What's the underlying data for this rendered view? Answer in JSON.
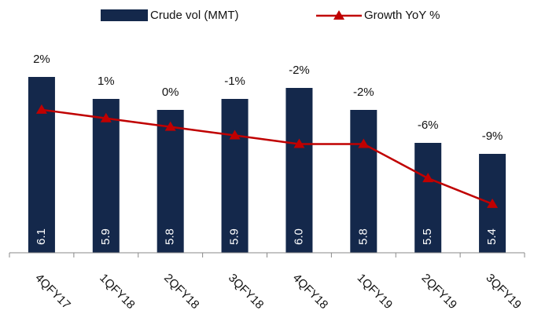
{
  "chart_data": {
    "type": "bar",
    "categories": [
      "4QFY17",
      "1QFY18",
      "2QFY18",
      "3QFY18",
      "4QFY18",
      "1QFY19",
      "2QFY19",
      "3QFY19"
    ],
    "series": [
      {
        "name": "Crude vol (MMT)",
        "type": "bar",
        "color": "#14284b",
        "axis": "y",
        "values": [
          6.1,
          5.9,
          5.8,
          5.9,
          6.0,
          5.8,
          5.5,
          5.4
        ],
        "value_labels": [
          "6.1",
          "5.9",
          "5.8",
          "5.9",
          "6.0",
          "5.8",
          "5.5",
          "5.4"
        ]
      },
      {
        "name": "Growth YoY %",
        "type": "line",
        "color": "#c00000",
        "axis": "y2",
        "values": [
          2,
          1,
          0,
          -1,
          -2,
          -2,
          -6,
          -9
        ],
        "value_labels": [
          "2%",
          "1%",
          "0%",
          "-1%",
          "-2%",
          "-2%",
          "-6%",
          "-9%"
        ]
      }
    ],
    "ylim": [
      4.5,
      6.3
    ],
    "y2lim": [
      -14.7,
      8.4
    ],
    "legend": "top"
  }
}
